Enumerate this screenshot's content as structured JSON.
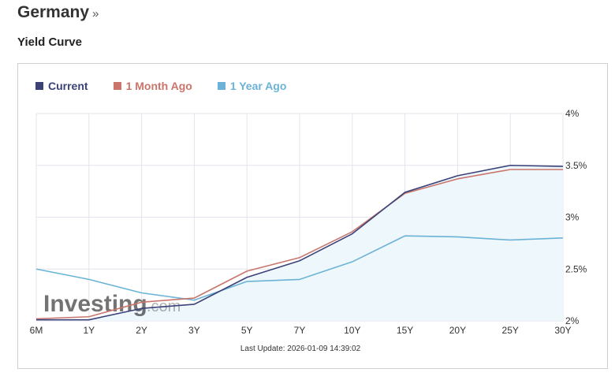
{
  "header": {
    "country": "Germany",
    "chevron": "»"
  },
  "section": {
    "title": "Yield Curve"
  },
  "legend": [
    {
      "label": "Current",
      "color": "#3a4278"
    },
    {
      "label": "1 Month Ago",
      "color": "#c9756b"
    },
    {
      "label": "1 Year Ago",
      "color": "#6bb3d6"
    }
  ],
  "logo": {
    "main": "Investing",
    "suffix": ".com"
  },
  "last_update": "Last Update: 2026-01-09 14:39:02",
  "chart_data": {
    "type": "line",
    "categories": [
      "6M",
      "1Y",
      "2Y",
      "3Y",
      "5Y",
      "7Y",
      "10Y",
      "15Y",
      "20Y",
      "25Y",
      "30Y"
    ],
    "series": [
      {
        "name": "Current",
        "color": "#3a4278",
        "values": [
          2.01,
          2.01,
          2.12,
          2.16,
          2.42,
          2.58,
          2.84,
          3.24,
          3.4,
          3.5,
          3.49
        ]
      },
      {
        "name": "1 Month Ago",
        "color": "#c9756b",
        "values": [
          2.02,
          2.04,
          2.18,
          2.22,
          2.48,
          2.61,
          2.86,
          3.23,
          3.37,
          3.46,
          3.46
        ]
      },
      {
        "name": "1 Year Ago",
        "color": "#6bb3d6",
        "values": [
          2.5,
          2.4,
          2.27,
          2.2,
          2.38,
          2.4,
          2.57,
          2.82,
          2.81,
          2.78,
          2.8
        ]
      }
    ],
    "y_ticks": [
      "4%",
      "3.5%",
      "3%",
      "2.5%",
      "2%"
    ],
    "ylim": [
      2,
      4
    ],
    "grid": true,
    "area_fill_series": "Current",
    "area_fill_color": "#eef7fc",
    "legend_position": "top-left"
  }
}
